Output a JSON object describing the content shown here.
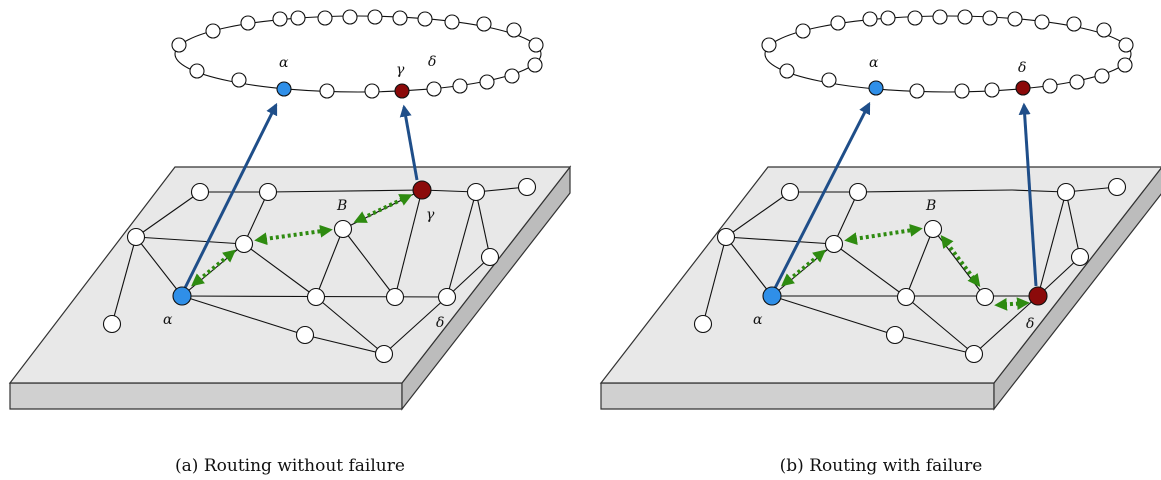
{
  "colors": {
    "source_node": "#2f8fe8",
    "target_node": "#8b0a0a",
    "overlay_arrow": "#1f4e89",
    "route": "#2e8b10",
    "plate": "#e8e8e8"
  },
  "panel_a": {
    "caption": "(a) Routing without failure",
    "ring_labels": {
      "alpha": "α",
      "gamma": "γ",
      "delta": "δ"
    },
    "net_labels": {
      "alpha": "α",
      "beta": "B",
      "gamma": "γ",
      "delta": "δ"
    }
  },
  "panel_b": {
    "caption": "(b) Routing with failure",
    "ring_labels": {
      "alpha": "α",
      "delta": "δ"
    },
    "net_labels": {
      "alpha": "α",
      "beta": "B",
      "delta": "δ"
    }
  }
}
